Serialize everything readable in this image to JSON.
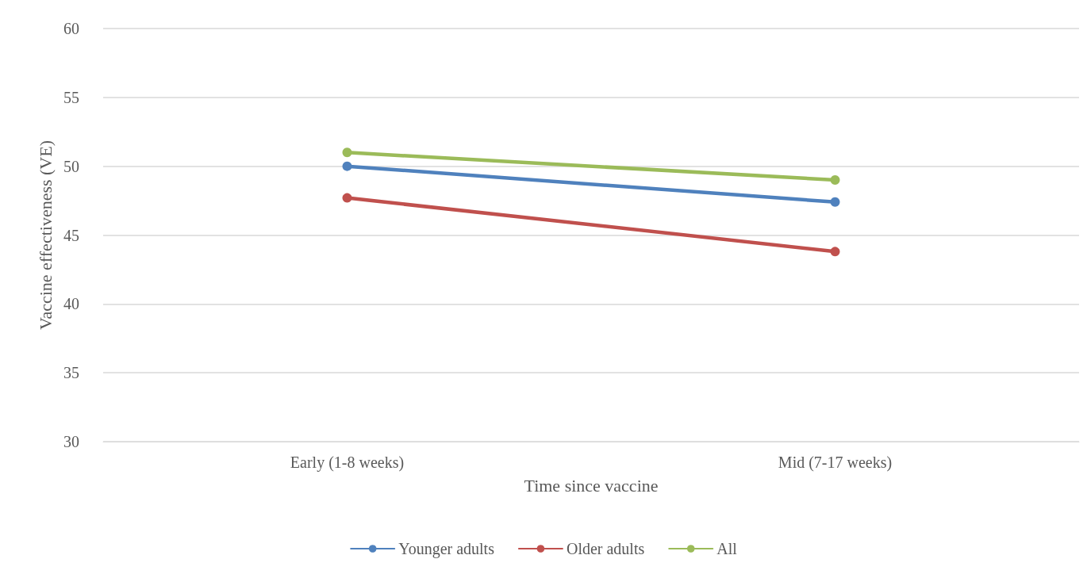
{
  "chart_data": {
    "type": "line",
    "xlabel": "Time since vaccine",
    "ylabel": "Vaccine effectiveness (VE)",
    "categories": [
      "Early (1-8 weeks)",
      "Mid (7-17 weeks)"
    ],
    "series": [
      {
        "name": "Younger adults",
        "color": "#4f81bd",
        "values": [
          50.0,
          47.4
        ]
      },
      {
        "name": "Older adults",
        "color": "#c0504d",
        "values": [
          47.7,
          43.8
        ]
      },
      {
        "name": "All",
        "color": "#9bbb59",
        "values": [
          51.0,
          49.0
        ]
      }
    ],
    "ylim": [
      30,
      60
    ],
    "yticks": [
      30,
      35,
      40,
      45,
      50,
      55,
      60
    ],
    "grid": "y",
    "legend": "bottom",
    "marker": "circle",
    "line_style": "solid"
  }
}
